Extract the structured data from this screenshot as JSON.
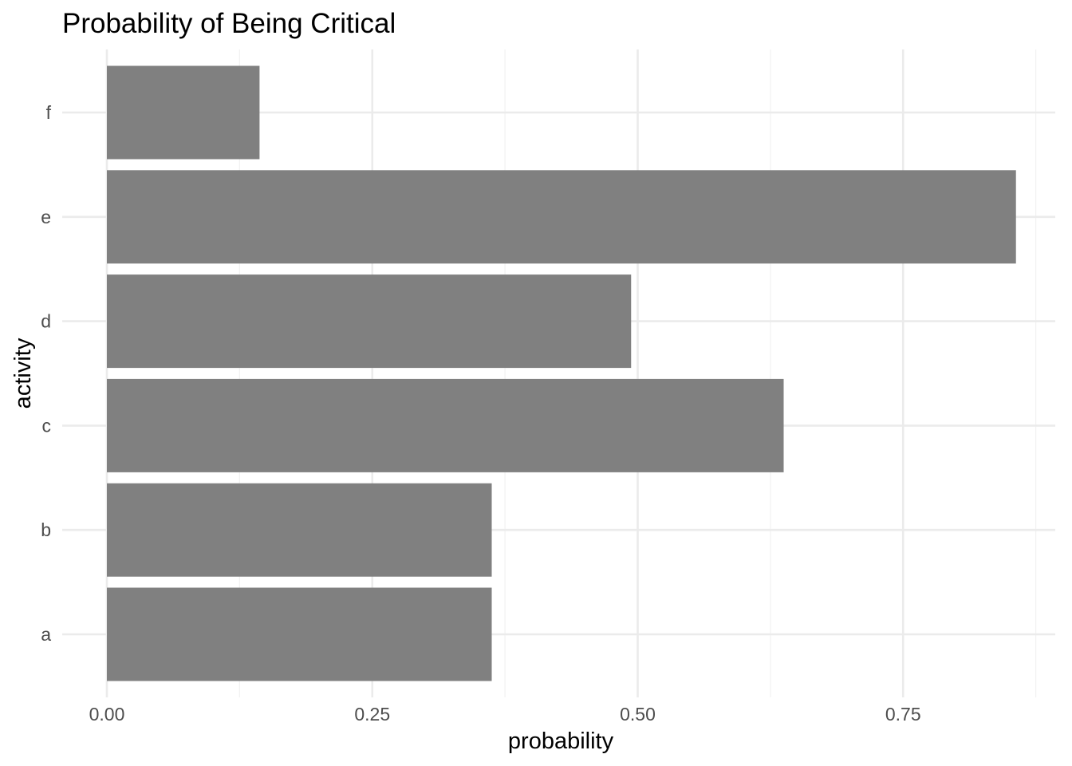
{
  "chart_data": {
    "type": "bar",
    "orientation": "horizontal",
    "title": "Probability of Being Critical",
    "xlabel": "probability",
    "ylabel": "activity",
    "categories": [
      "a",
      "b",
      "c",
      "d",
      "e",
      "f"
    ],
    "values": [
      0.3625,
      0.3625,
      0.6375,
      0.4938,
      0.8563,
      0.1438
    ],
    "xlim": [
      0,
      0.88
    ],
    "x_ticks": [
      0.0,
      0.25,
      0.5,
      0.75
    ],
    "x_tick_labels": [
      "0.00",
      "0.25",
      "0.50",
      "0.75"
    ],
    "grid": true,
    "legend": "none",
    "colors": {
      "bar": "#808080",
      "grid_major": "#ebebeb",
      "grid_minor": "#f2f2f2",
      "tick_text": "#4d4d4d",
      "title_text": "#000000"
    }
  }
}
